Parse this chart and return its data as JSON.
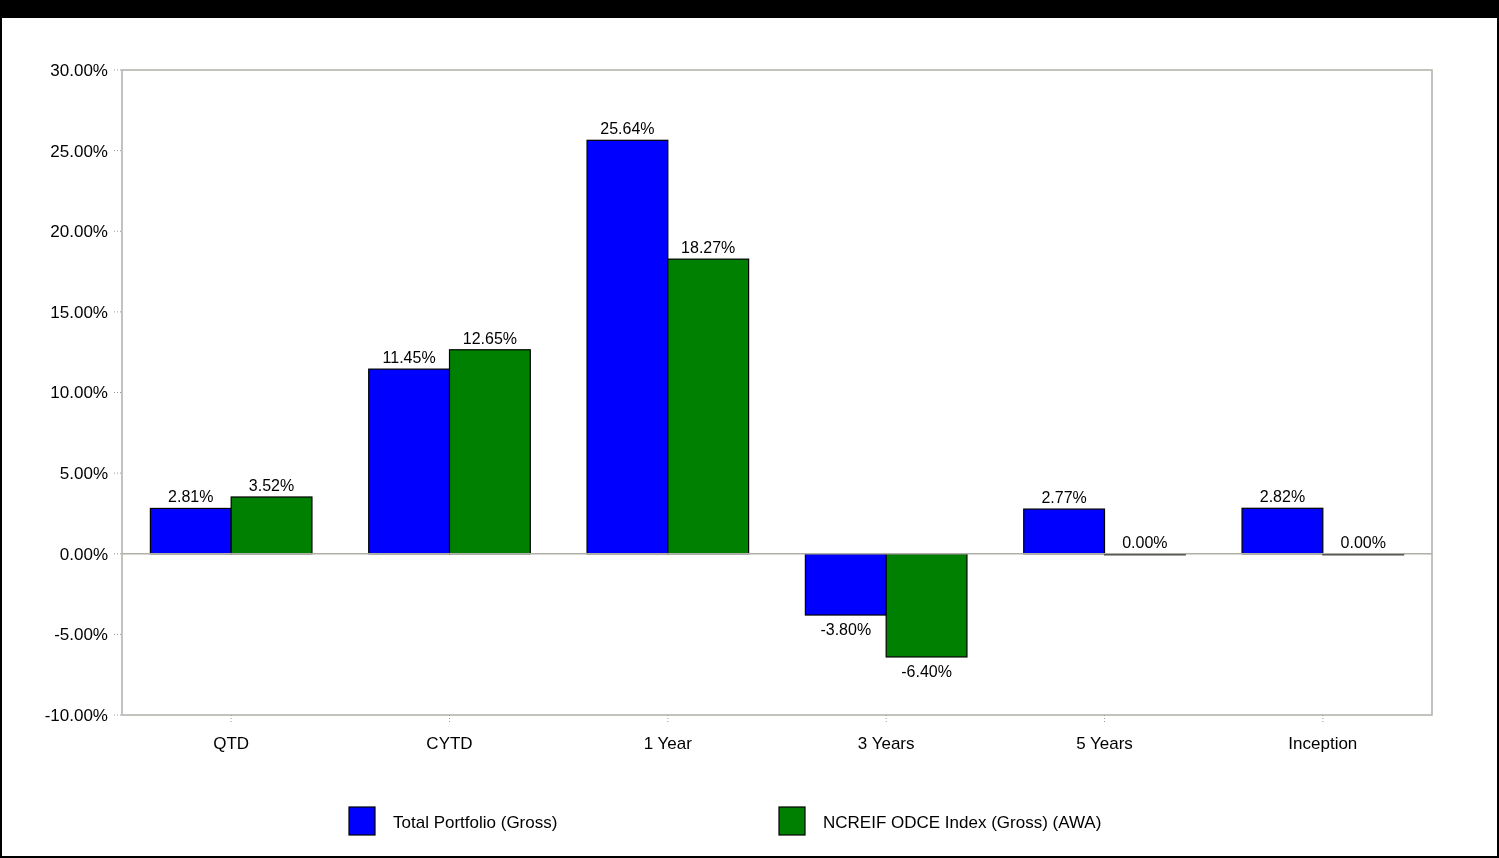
{
  "chart_data": {
    "type": "bar",
    "categories": [
      "QTD",
      "CYTD",
      "1 Year",
      "3 Years",
      "5 Years",
      "Inception"
    ],
    "series": [
      {
        "name": "Total Portfolio (Gross)",
        "color": "#0000ff",
        "values": [
          2.81,
          11.45,
          25.64,
          -3.8,
          2.77,
          2.82
        ],
        "value_labels": [
          "2.81%",
          "11.45%",
          "25.64%",
          "-3.80%",
          "2.77%",
          "2.82%"
        ]
      },
      {
        "name": "NCREIF ODCE Index (Gross) (AWA)",
        "color": "#008000",
        "values": [
          3.52,
          12.65,
          18.27,
          -6.4,
          0,
          0
        ],
        "value_labels": [
          "3.52%",
          "12.65%",
          "18.27%",
          "-6.40%",
          "0.00%",
          "0.00%"
        ]
      }
    ],
    "ylim": [
      -10,
      30
    ],
    "yticks": [
      {
        "value": -10,
        "label": "-10.00%"
      },
      {
        "value": -5,
        "label": "-5.00%"
      },
      {
        "value": 0,
        "label": "0.00%"
      },
      {
        "value": 5,
        "label": "5.00%"
      },
      {
        "value": 10,
        "label": "10.00%"
      },
      {
        "value": 15,
        "label": "15.00%"
      },
      {
        "value": 20,
        "label": "20.00%"
      },
      {
        "value": 25,
        "label": "25.00%"
      },
      {
        "value": 30,
        "label": "30.00%"
      }
    ],
    "legend": "bottom"
  }
}
